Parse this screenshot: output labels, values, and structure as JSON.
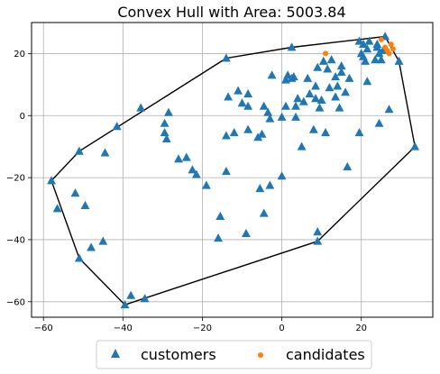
{
  "chart_data": {
    "type": "scatter",
    "title": "Convex Hull with Area: 5003.84",
    "xlabel": "",
    "ylabel": "",
    "xlim": [
      -63,
      38
    ],
    "ylim": [
      -65,
      30
    ],
    "xticks": [
      -60,
      -40,
      -20,
      0,
      20
    ],
    "yticks": [
      -60,
      -40,
      -20,
      0,
      20
    ],
    "grid": true,
    "legend_position": "bottom-center",
    "series": [
      {
        "name": "customers",
        "marker": "triangle",
        "color": "#1f77b4",
        "points": [
          [
            -58,
            -21
          ],
          [
            -56.5,
            -30
          ],
          [
            -52,
            -25
          ],
          [
            -51,
            -11.5
          ],
          [
            -51,
            -46
          ],
          [
            -49.5,
            -29
          ],
          [
            -48,
            -42.5
          ],
          [
            -45,
            -40.5
          ],
          [
            -44.5,
            -12
          ],
          [
            -41.5,
            -3.5
          ],
          [
            -39.5,
            -61
          ],
          [
            -38,
            -58
          ],
          [
            -35.5,
            2.5
          ],
          [
            -34.5,
            -59
          ],
          [
            -29.5,
            -5.5
          ],
          [
            -29.5,
            -2.5
          ],
          [
            -29,
            -7.5
          ],
          [
            -28.5,
            1
          ],
          [
            -26,
            -14
          ],
          [
            -24,
            -13.5
          ],
          [
            -22.5,
            -17.5
          ],
          [
            -21.5,
            -19
          ],
          [
            -19,
            -22.5
          ],
          [
            -16,
            -39.5
          ],
          [
            -15.5,
            -32.5
          ],
          [
            -14,
            -6.5
          ],
          [
            -14,
            -18
          ],
          [
            -14,
            18.5
          ],
          [
            -13.5,
            6
          ],
          [
            -12,
            -5.5
          ],
          [
            -11,
            8
          ],
          [
            -10,
            4
          ],
          [
            -9,
            -38
          ],
          [
            -8.5,
            -4.5
          ],
          [
            -8.5,
            3
          ],
          [
            -8.5,
            7
          ],
          [
            -6,
            -7
          ],
          [
            -5.5,
            -23.5
          ],
          [
            -5,
            -6
          ],
          [
            -4.5,
            -31.5
          ],
          [
            -4.5,
            3
          ],
          [
            -3.5,
            1
          ],
          [
            -3,
            -22.5
          ],
          [
            -3,
            -1
          ],
          [
            -2.5,
            13
          ],
          [
            0,
            -19.5
          ],
          [
            0,
            -0.5
          ],
          [
            1,
            3
          ],
          [
            1,
            11.5
          ],
          [
            1.5,
            13
          ],
          [
            2.5,
            12
          ],
          [
            2.5,
            22
          ],
          [
            3,
            12.5
          ],
          [
            3.5,
            -0.5
          ],
          [
            3.5,
            3
          ],
          [
            4,
            5.5
          ],
          [
            5,
            -10
          ],
          [
            5.5,
            4.5
          ],
          [
            6.5,
            12
          ],
          [
            7,
            7
          ],
          [
            8.5,
            9.5
          ],
          [
            8.5,
            5.5
          ],
          [
            8,
            -4.5
          ],
          [
            9,
            15.5
          ],
          [
            9,
            -40.5
          ],
          [
            9,
            -37.5
          ],
          [
            9.5,
            2.5
          ],
          [
            10,
            5
          ],
          [
            10.5,
            17.5
          ],
          [
            11,
            -5.5
          ],
          [
            11.5,
            15
          ],
          [
            12,
            9
          ],
          [
            12.5,
            18
          ],
          [
            13.5,
            6
          ],
          [
            13.5,
            12.5
          ],
          [
            14,
            9.5
          ],
          [
            14.5,
            2.5
          ],
          [
            15,
            16
          ],
          [
            15,
            14
          ],
          [
            16,
            7.5
          ],
          [
            16.5,
            -16.5
          ],
          [
            17,
            12
          ],
          [
            19.5,
            -5.5
          ],
          [
            19.5,
            24
          ],
          [
            20,
            20
          ],
          [
            20.5,
            19
          ],
          [
            20.5,
            23
          ],
          [
            21,
            17.5
          ],
          [
            21.5,
            11
          ],
          [
            21.5,
            21.5
          ],
          [
            22,
            24
          ],
          [
            23.5,
            18
          ],
          [
            24,
            22
          ],
          [
            24,
            23
          ],
          [
            24.5,
            20
          ],
          [
            24.5,
            -2.5
          ],
          [
            25,
            18
          ],
          [
            25.5,
            21
          ],
          [
            26,
            25.5
          ],
          [
            27,
            2
          ],
          [
            29.5,
            17.5
          ],
          [
            33.5,
            -10
          ]
        ]
      },
      {
        "name": "candidates",
        "marker": "circle",
        "color": "#ff7f0e",
        "points": [
          [
            11,
            20
          ],
          [
            25,
            24.5
          ],
          [
            26,
            22
          ],
          [
            26.5,
            21
          ],
          [
            27,
            20
          ],
          [
            27.5,
            23
          ],
          [
            28,
            21.5
          ]
        ]
      }
    ],
    "hull": [
      [
        -58,
        -21
      ],
      [
        -51,
        -46
      ],
      [
        -39.5,
        -61
      ],
      [
        9,
        -40.5
      ],
      [
        33.5,
        -10
      ],
      [
        29.5,
        17.5
      ],
      [
        26,
        25.5
      ],
      [
        2.5,
        22
      ],
      [
        -14,
        18.5
      ],
      [
        -51,
        -11.5
      ],
      [
        -58,
        -21
      ]
    ]
  }
}
